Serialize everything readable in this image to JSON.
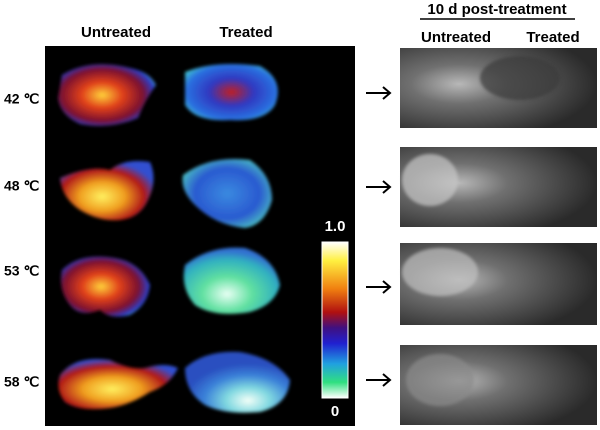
{
  "header": {
    "columns": [
      "Untreated",
      "Treated"
    ],
    "followup_title": "10 d post-treatment",
    "followup_columns": [
      "Untreated",
      "Treated"
    ]
  },
  "rows": [
    {
      "label": "42 ℃"
    },
    {
      "label": "48 ℃"
    },
    {
      "label": "53 ℃"
    },
    {
      "label": "58 ℃"
    }
  ],
  "colorbar": {
    "max_label": "1.0",
    "min_label": "0"
  }
}
